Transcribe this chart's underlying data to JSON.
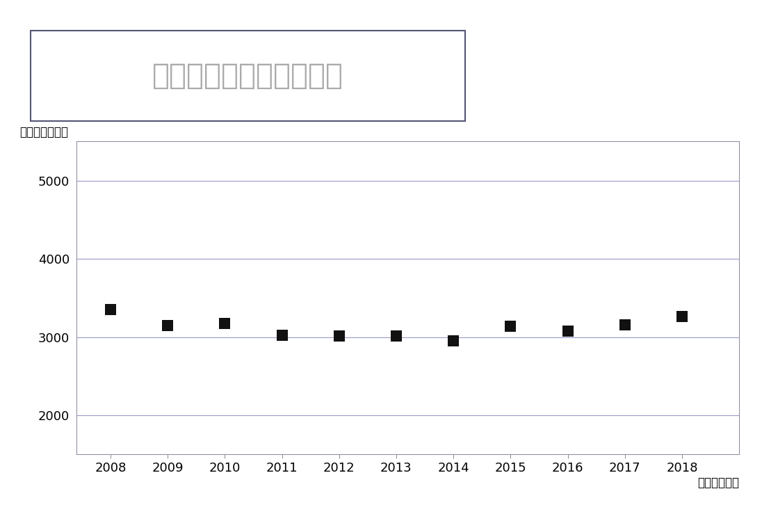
{
  "title": "中古戸建住宅の価格推移",
  "ylabel": "（単位：万円）",
  "xlabel_suffix": "（単位：年）",
  "years": [
    2008,
    2009,
    2010,
    2011,
    2012,
    2013,
    2014,
    2015,
    2016,
    2017,
    2018
  ],
  "values": [
    3350,
    3150,
    3170,
    3020,
    3010,
    3010,
    2950,
    3140,
    3080,
    3160,
    3260
  ],
  "ylim": [
    1500,
    5500
  ],
  "yticks": [
    2000,
    3000,
    4000,
    5000
  ],
  "marker_color": "#111111",
  "grid_color": "#9999cc",
  "bg_color": "#ffffff",
  "title_color": "#aaaaaa",
  "title_box_edge_color": "#555577",
  "marker_size": 130,
  "title_fontsize": 30,
  "label_fontsize": 12,
  "tick_fontsize": 13
}
